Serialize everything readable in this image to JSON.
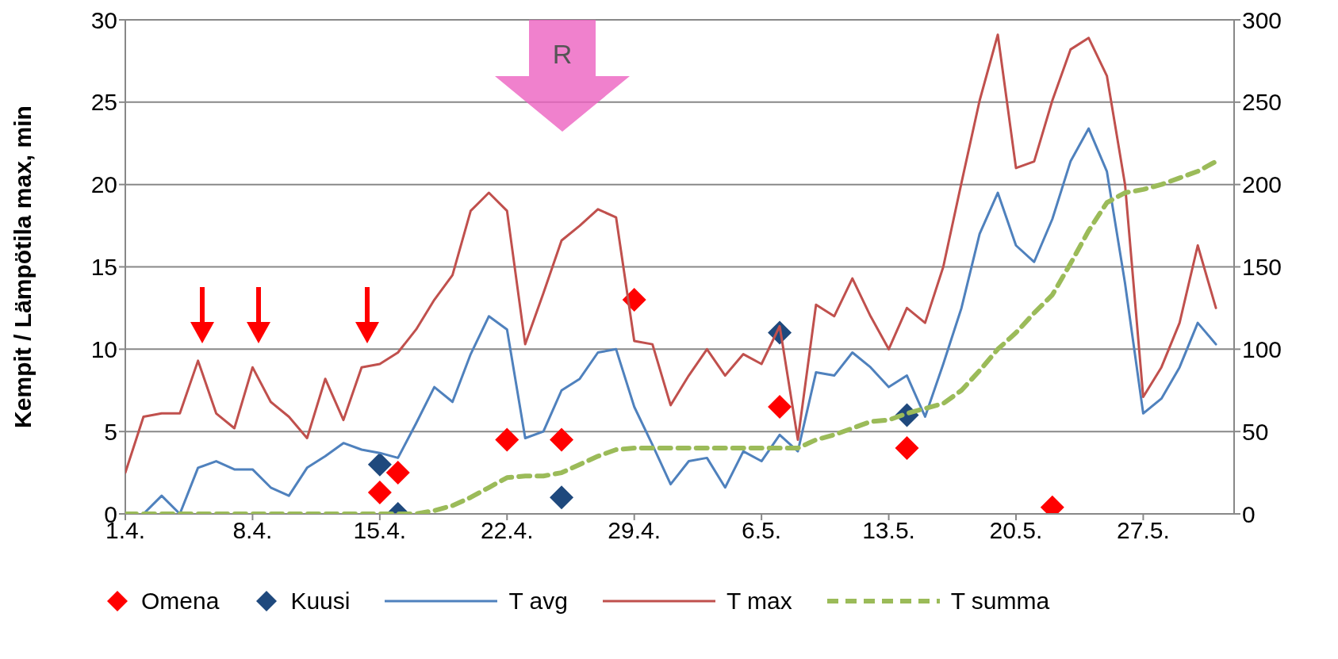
{
  "chart_data": {
    "type": "line",
    "ylabel": "Kempit / Lämpötila max, min",
    "annotations": [
      "R"
    ],
    "x": [
      "--04-01",
      "--04-02",
      "--04-03",
      "--04-04",
      "--04-05",
      "--04-06",
      "--04-07",
      "--04-08",
      "--04-09",
      "--04-10",
      "--04-11",
      "--04-12",
      "--04-13",
      "--04-14",
      "--04-15",
      "--04-16",
      "--04-17",
      "--04-18",
      "--04-19",
      "--04-20",
      "--04-21",
      "--04-22",
      "--04-23",
      "--04-24",
      "--04-25",
      "--04-26",
      "--04-27",
      "--04-28",
      "--04-29",
      "--04-30",
      "--05-01",
      "--05-02",
      "--05-03",
      "--05-04",
      "--05-05",
      "--05-06",
      "--05-07",
      "--05-08",
      "--05-09",
      "--05-10",
      "--05-11",
      "--05-12",
      "--05-13",
      "--05-14",
      "--05-15",
      "--05-16",
      "--05-17",
      "--05-18",
      "--05-19",
      "--05-20",
      "--05-21",
      "--05-22",
      "--05-23",
      "--05-24",
      "--05-25",
      "--05-26",
      "--05-27",
      "--05-28",
      "--05-29",
      "--05-30",
      "--05-31"
    ],
    "xlim": [
      "--04-01",
      "--06-01"
    ],
    "xticks": [
      {
        "value": "--04-01",
        "label": "1.4."
      },
      {
        "value": "--04-08",
        "label": "8.4."
      },
      {
        "value": "--04-15",
        "label": "15.4."
      },
      {
        "value": "--04-22",
        "label": "22.4."
      },
      {
        "value": "--04-29",
        "label": "29.4."
      },
      {
        "value": "--05-06",
        "label": "6.5."
      },
      {
        "value": "--05-13",
        "label": "13.5."
      },
      {
        "value": "--05-20",
        "label": "20.5."
      },
      {
        "value": "--05-27",
        "label": "27.5."
      }
    ],
    "ylim": [
      0,
      30
    ],
    "yticks": [
      0,
      5,
      10,
      15,
      20,
      25,
      30
    ],
    "y2lim": [
      0,
      300
    ],
    "y2ticks": [
      0,
      50,
      100,
      150,
      200,
      250,
      300
    ],
    "grid": "y",
    "legend": "bottom",
    "series": [
      {
        "name": "Omena",
        "type": "scatter",
        "marker": "diamond",
        "color": "#ff0000",
        "x": [
          "--04-15",
          "--04-16",
          "--04-22",
          "--04-25",
          "--04-29",
          "--05-07",
          "--05-14",
          "--05-22"
        ],
        "values": [
          1.3,
          2.5,
          4.5,
          4.5,
          13.0,
          6.5,
          4.0,
          0.4
        ]
      },
      {
        "name": "Kuusi",
        "type": "scatter",
        "marker": "diamond",
        "color": "#1f497d",
        "x": [
          "--04-15",
          "--04-16",
          "--04-25",
          "--05-07",
          "--05-14"
        ],
        "values": [
          3,
          0,
          1,
          11,
          6
        ]
      },
      {
        "name": "T avg",
        "color": "#4f81bd",
        "values": [
          null,
          0,
          1.1,
          0,
          2.8,
          3.2,
          2.7,
          2.7,
          1.6,
          1.1,
          2.8,
          3.5,
          4.3,
          3.9,
          3.7,
          3.4,
          5.5,
          7.7,
          6.8,
          9.7,
          12.0,
          11.2,
          4.6,
          5.0,
          7.5,
          8.2,
          9.8,
          10.0,
          6.5,
          4.2,
          1.8,
          3.2,
          3.4,
          1.6,
          3.8,
          3.2,
          4.8,
          3.8,
          8.6,
          8.4,
          9.8,
          8.9,
          7.7,
          8.4,
          5.9,
          9.1,
          12.5,
          17.0,
          19.5,
          16.3,
          15.3,
          17.9,
          21.4,
          23.4,
          20.8,
          14.0,
          6.1,
          7.0,
          8.9,
          11.6,
          10.3
        ]
      },
      {
        "name": "T max",
        "color": "#c0504d",
        "values": [
          2.5,
          5.9,
          6.1,
          6.1,
          9.3,
          6.1,
          5.2,
          8.9,
          6.8,
          5.9,
          4.6,
          8.2,
          5.7,
          8.9,
          9.1,
          9.8,
          11.2,
          13.0,
          14.5,
          18.4,
          19.5,
          18.4,
          10.3,
          13.4,
          16.6,
          17.5,
          18.5,
          18.0,
          10.5,
          10.3,
          6.6,
          8.4,
          10.0,
          8.4,
          9.7,
          9.1,
          11.4,
          4.5,
          12.7,
          12.0,
          14.3,
          12.0,
          10.0,
          12.5,
          11.6,
          15.0,
          20.1,
          25.1,
          29.1,
          21.0,
          21.4,
          25.1,
          28.2,
          28.9,
          26.6,
          20.0,
          7.1,
          8.9,
          11.6,
          16.3,
          12.5
        ]
      },
      {
        "name": "T summa",
        "axis": "y2",
        "line_style": "dashed",
        "color": "#9bbb59",
        "values": [
          0,
          0,
          0,
          0,
          0,
          0,
          0,
          0,
          0,
          0,
          0,
          0,
          0,
          0,
          0,
          0,
          0,
          2,
          5,
          10,
          16,
          22,
          23,
          23,
          25,
          30,
          35,
          39,
          40,
          40,
          40,
          40,
          40,
          40,
          40,
          40,
          40,
          40,
          45,
          48,
          52,
          56,
          57,
          61,
          64,
          67,
          75,
          87,
          100,
          110,
          122,
          133,
          152,
          172,
          189,
          195,
          197,
          200,
          204,
          208,
          214
        ]
      }
    ]
  }
}
